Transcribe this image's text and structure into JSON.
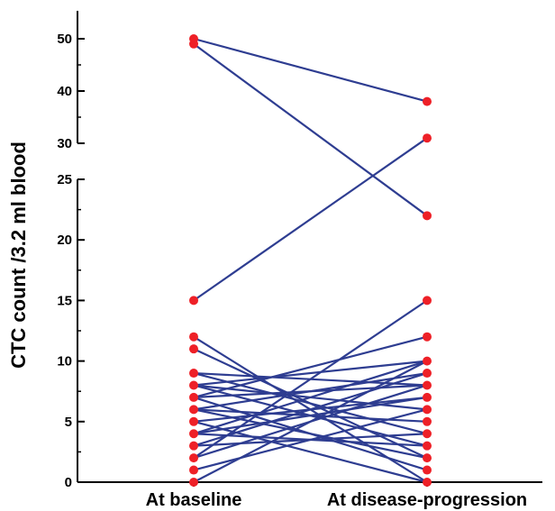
{
  "chart_data": {
    "type": "line",
    "title": "",
    "xlabel": "",
    "ylabel": "CTC count /3.2 ml blood",
    "categories": [
      "At baseline",
      "At disease-progression"
    ],
    "y_axis_break": {
      "lower_segment": [
        0,
        25
      ],
      "upper_segment": [
        30,
        50
      ]
    },
    "yticks_lower": [
      0,
      5,
      10,
      15,
      20,
      25
    ],
    "yticks_upper": [
      30,
      40,
      50
    ],
    "colors": {
      "line": "#2e3d91",
      "point": "#ee2027"
    },
    "pairs": [
      [
        50,
        38
      ],
      [
        49,
        22
      ],
      [
        15,
        31
      ],
      [
        12,
        0
      ],
      [
        11,
        2
      ],
      [
        9,
        8
      ],
      [
        9,
        4
      ],
      [
        8,
        10
      ],
      [
        8,
        3
      ],
      [
        8,
        6
      ],
      [
        7,
        8
      ],
      [
        7,
        1
      ],
      [
        7,
        12
      ],
      [
        6,
        9
      ],
      [
        6,
        5
      ],
      [
        6,
        2
      ],
      [
        5,
        7
      ],
      [
        5,
        0
      ],
      [
        4,
        10
      ],
      [
        4,
        3
      ],
      [
        4,
        7
      ],
      [
        3,
        4
      ],
      [
        3,
        9
      ],
      [
        2,
        15
      ],
      [
        2,
        8
      ],
      [
        1,
        6
      ],
      [
        0,
        10
      ]
    ]
  }
}
